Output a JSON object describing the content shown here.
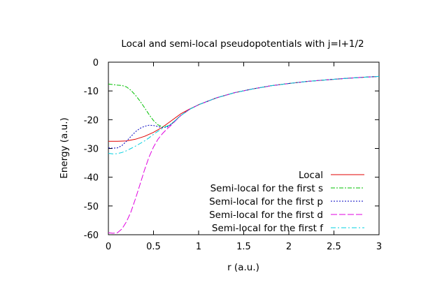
{
  "chart_data": {
    "type": "line",
    "title": "Local and semi-local pseudopotentials with j=l+1/2",
    "xlabel": "r (a.u.)",
    "ylabel": "Energy (a.u.)",
    "xlim": [
      0,
      3
    ],
    "ylim": [
      -60,
      0
    ],
    "x_ticks": [
      "0",
      "0.5",
      "1",
      "1.5",
      "2",
      "2.5",
      "3"
    ],
    "y_ticks": [
      "0",
      "-10",
      "-20",
      "-30",
      "-40",
      "-50",
      "-60"
    ],
    "grid": false,
    "legend_position": "bottom-right",
    "series": [
      {
        "name": "Local",
        "color": "#e00000",
        "dash": "solid",
        "x": [
          0,
          0.1,
          0.2,
          0.3,
          0.4,
          0.5,
          0.6,
          0.7,
          0.8,
          0.9,
          1.0,
          1.2,
          1.4,
          1.6,
          1.8,
          2.0,
          2.2,
          2.4,
          2.6,
          2.8,
          3.0
        ],
        "y": [
          -27.5,
          -27.5,
          -27.4,
          -26.8,
          -25.8,
          -24.4,
          -22.6,
          -20.3,
          -18.0,
          -16.3,
          -14.8,
          -12.4,
          -10.6,
          -9.3,
          -8.2,
          -7.4,
          -6.7,
          -6.2,
          -5.7,
          -5.3,
          -4.95
        ]
      },
      {
        "name": "Semi-local for the first s",
        "color": "#00c000",
        "dash": "dash",
        "x": [
          0,
          0.05,
          0.1,
          0.15,
          0.2,
          0.25,
          0.3,
          0.35,
          0.4,
          0.45,
          0.5,
          0.55,
          0.6,
          0.65,
          0.7,
          0.8,
          0.9,
          1.0,
          1.2,
          1.4,
          1.6,
          1.8,
          2.0,
          2.2,
          2.4,
          2.6,
          2.8,
          3.0
        ],
        "y": [
          -7.6,
          -7.8,
          -8.0,
          -8.1,
          -8.6,
          -9.8,
          -11.5,
          -13.5,
          -15.8,
          -18.2,
          -20.3,
          -21.8,
          -22.5,
          -22.3,
          -21.4,
          -18.6,
          -16.4,
          -14.8,
          -12.4,
          -10.6,
          -9.3,
          -8.2,
          -7.4,
          -6.7,
          -6.2,
          -5.7,
          -5.3,
          -4.95
        ]
      },
      {
        "name": "Semi-local for the first p",
        "color": "#0000c0",
        "dash": "dot",
        "x": [
          0,
          0.05,
          0.1,
          0.15,
          0.2,
          0.25,
          0.3,
          0.35,
          0.4,
          0.45,
          0.5,
          0.55,
          0.6,
          0.65,
          0.7,
          0.8,
          0.9,
          1.0,
          1.2,
          1.4,
          1.6,
          1.8,
          2.0,
          2.2,
          2.4,
          2.6,
          2.8,
          3.0
        ],
        "y": [
          -29.8,
          -29.9,
          -29.8,
          -29.0,
          -27.5,
          -25.8,
          -24.2,
          -23.0,
          -22.3,
          -21.9,
          -22.0,
          -22.4,
          -22.8,
          -22.6,
          -21.5,
          -18.6,
          -16.4,
          -14.8,
          -12.4,
          -10.6,
          -9.3,
          -8.2,
          -7.4,
          -6.7,
          -6.2,
          -5.7,
          -5.3,
          -4.95
        ]
      },
      {
        "name": "Semi-local for the first d",
        "color": "#e000e0",
        "dash": "longdash",
        "x": [
          0,
          0.05,
          0.1,
          0.15,
          0.2,
          0.25,
          0.3,
          0.35,
          0.4,
          0.45,
          0.5,
          0.55,
          0.6,
          0.65,
          0.7,
          0.8,
          0.9,
          1.0,
          1.2,
          1.4,
          1.6,
          1.8,
          2.0,
          2.2,
          2.4,
          2.6,
          2.8,
          3.0
        ],
        "y": [
          -59.3,
          -59.5,
          -59.3,
          -58.0,
          -55.5,
          -52.0,
          -47.5,
          -42.5,
          -37.5,
          -33.0,
          -29.5,
          -26.8,
          -24.8,
          -23.2,
          -21.8,
          -18.6,
          -16.4,
          -14.8,
          -12.4,
          -10.6,
          -9.3,
          -8.2,
          -7.4,
          -6.7,
          -6.2,
          -5.7,
          -5.3,
          -4.95
        ]
      },
      {
        "name": "Semi-local for the first f",
        "color": "#00d0e0",
        "dash": "dashdot",
        "x": [
          0,
          0.05,
          0.1,
          0.15,
          0.2,
          0.25,
          0.3,
          0.35,
          0.4,
          0.45,
          0.5,
          0.55,
          0.6,
          0.65,
          0.7,
          0.8,
          0.9,
          1.0,
          1.2,
          1.4,
          1.6,
          1.8,
          2.0,
          2.2,
          2.4,
          2.6,
          2.8,
          3.0
        ],
        "y": [
          -31.7,
          -31.9,
          -31.8,
          -31.4,
          -30.8,
          -30.0,
          -29.2,
          -28.3,
          -27.4,
          -26.3,
          -25.1,
          -24.0,
          -23.0,
          -22.2,
          -21.4,
          -18.6,
          -16.4,
          -14.8,
          -12.4,
          -10.6,
          -9.3,
          -8.2,
          -7.4,
          -6.7,
          -6.2,
          -5.7,
          -5.3,
          -4.95
        ]
      }
    ]
  }
}
